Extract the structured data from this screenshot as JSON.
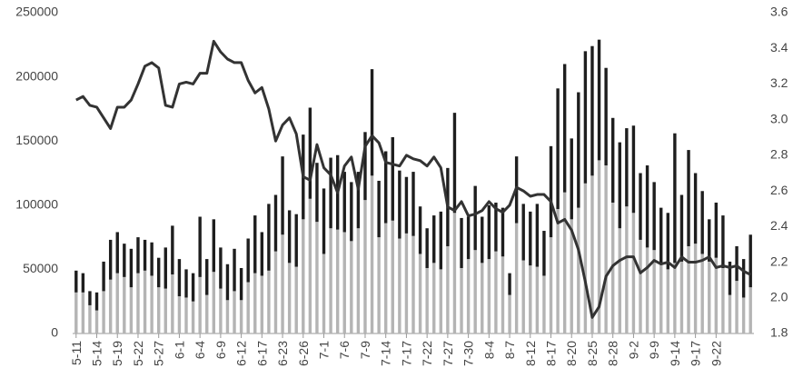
{
  "chart_data": {
    "type": "bar",
    "categories": [
      "5-11",
      null,
      null,
      "5-14",
      null,
      null,
      "5-19",
      null,
      null,
      "5-22",
      null,
      null,
      "5-27",
      null,
      null,
      "6-1",
      null,
      null,
      "6-4",
      null,
      null,
      "6-9",
      null,
      null,
      "6-12",
      null,
      null,
      "6-17",
      null,
      null,
      "6-23",
      null,
      null,
      "6-26",
      null,
      null,
      "7-1",
      null,
      null,
      "7-6",
      null,
      null,
      "7-9",
      null,
      null,
      "7-14",
      null,
      null,
      "7-17",
      null,
      null,
      "7-22",
      null,
      null,
      "7-27",
      null,
      null,
      "7-30",
      null,
      null,
      "8-4",
      null,
      null,
      "8-7",
      null,
      null,
      "8-12",
      null,
      null,
      "8-17",
      null,
      null,
      "8-20",
      null,
      null,
      "8-25",
      null,
      null,
      "8-28",
      null,
      null,
      "9-2",
      null,
      null,
      "9-9",
      null,
      null,
      "9-14",
      null,
      null,
      "9-17",
      null,
      null,
      "9-22",
      null,
      null,
      null,
      null,
      null
    ],
    "series": [
      {
        "color": "#b4b4b4",
        "values": [
          32000,
          32000,
          22000,
          18000,
          33000,
          42000,
          47000,
          44000,
          36000,
          47000,
          49000,
          45000,
          36000,
          35000,
          46000,
          29000,
          28000,
          25000,
          44000,
          30000,
          48000,
          35000,
          26000,
          33000,
          26000,
          40000,
          47000,
          45000,
          49000,
          64000,
          77000,
          55000,
          52000,
          89000,
          105000,
          87000,
          62000,
          82000,
          81000,
          79000,
          72000,
          82000,
          104000,
          123000,
          75000,
          86000,
          88000,
          74000,
          78000,
          76000,
          62000,
          51000,
          55000,
          50000,
          68000,
          94000,
          51000,
          58000,
          65000,
          55000,
          58000,
          64000,
          60000,
          30000,
          86000,
          57000,
          53000,
          52000,
          45000,
          75000,
          97000,
          110000,
          89000,
          98000,
          117000,
          123000,
          135000,
          131000,
          102000,
          82000,
          99000,
          94000,
          73000,
          67000,
          65000,
          54000,
          50000,
          55000,
          56000,
          68000,
          70000,
          62000,
          56000,
          59000,
          51000,
          30000,
          41000,
          28000,
          36000
        ]
      },
      {
        "color": "#1e1e1e",
        "values": [
          17000,
          15000,
          11000,
          14000,
          23000,
          31000,
          32000,
          26000,
          30000,
          28000,
          24000,
          26000,
          23000,
          32000,
          38000,
          29000,
          22000,
          22000,
          47000,
          28000,
          41000,
          32000,
          28000,
          33000,
          25000,
          34000,
          45000,
          34000,
          52000,
          44000,
          61000,
          41000,
          41000,
          66000,
          71000,
          46000,
          51000,
          55000,
          58000,
          47000,
          46000,
          44000,
          53000,
          83000,
          44000,
          56000,
          65000,
          53000,
          44000,
          50000,
          37000,
          31000,
          37000,
          45000,
          61000,
          78000,
          39000,
          33000,
          50000,
          36000,
          42000,
          38000,
          38000,
          17000,
          52000,
          44000,
          42000,
          49000,
          35000,
          71000,
          94000,
          100000,
          63000,
          90000,
          103000,
          101000,
          94000,
          76000,
          66000,
          67000,
          61000,
          68000,
          52000,
          64000,
          53000,
          44000,
          44000,
          101000,
          52000,
          75000,
          55000,
          49000,
          33000,
          43000,
          41000,
          26000,
          27000,
          30000,
          41000
        ]
      },
      {
        "type": "line",
        "axis": "y2",
        "color": "#333333",
        "values": [
          3.11,
          3.13,
          3.08,
          3.07,
          3.01,
          2.95,
          3.07,
          3.07,
          3.11,
          3.2,
          3.3,
          3.32,
          3.29,
          3.08,
          3.07,
          3.2,
          3.21,
          3.2,
          3.26,
          3.26,
          3.44,
          3.38,
          3.34,
          3.32,
          3.32,
          3.22,
          3.15,
          3.18,
          3.06,
          2.88,
          2.97,
          3.01,
          2.92,
          2.68,
          2.66,
          2.86,
          2.73,
          2.69,
          2.59,
          2.74,
          2.79,
          2.61,
          2.85,
          2.91,
          2.87,
          2.76,
          2.75,
          2.74,
          2.8,
          2.78,
          2.77,
          2.74,
          2.79,
          2.73,
          2.51,
          2.49,
          2.54,
          2.46,
          2.47,
          2.49,
          2.54,
          2.5,
          2.48,
          2.52,
          2.62,
          2.6,
          2.57,
          2.58,
          2.58,
          2.54,
          2.42,
          2.44,
          2.38,
          2.27,
          2.09,
          1.89,
          1.95,
          2.12,
          2.18,
          2.21,
          2.23,
          2.23,
          2.14,
          2.17,
          2.21,
          2.19,
          2.2,
          2.17,
          2.23,
          2.2,
          2.2,
          2.21,
          2.23,
          2.17,
          2.18,
          2.17,
          2.18,
          2.15,
          2.13
        ]
      }
    ],
    "ylim": [
      0,
      250000
    ],
    "yticks": [
      0,
      50000,
      100000,
      150000,
      200000,
      250000
    ],
    "y2lim": [
      1.8,
      3.6
    ],
    "y2ticks": [
      1.8,
      {
        "value": 2,
        "label": "2.0"
      },
      2.2,
      2.4,
      2.6,
      2.8,
      {
        "value": 3,
        "label": "3.0"
      },
      3.2,
      3.4,
      3.6
    ],
    "grid": false
  }
}
